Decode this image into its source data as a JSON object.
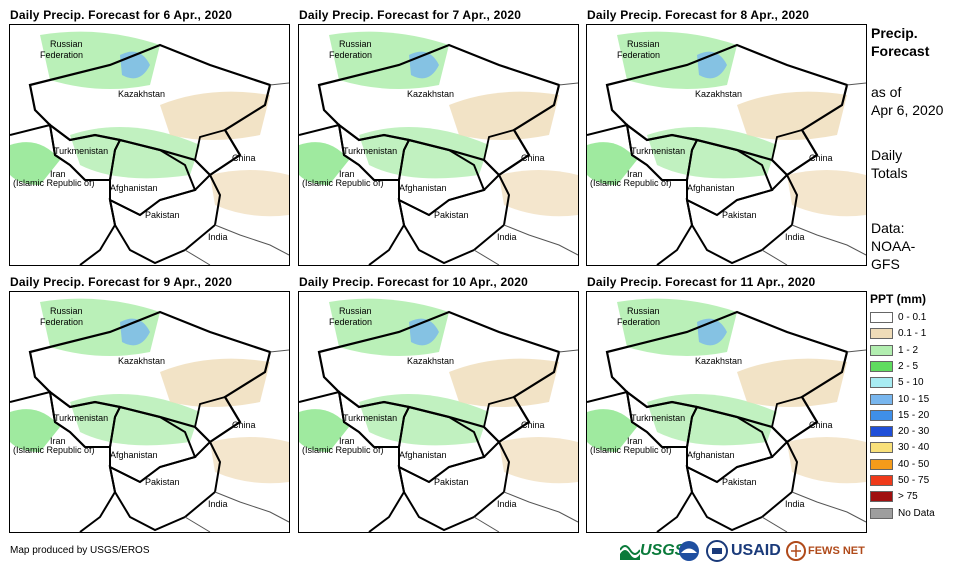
{
  "panels": [
    {
      "title": "Daily Precip. Forecast for 6 Apr., 2020"
    },
    {
      "title": "Daily Precip. Forecast for 7 Apr., 2020"
    },
    {
      "title": "Daily Precip. Forecast for 8 Apr., 2020"
    },
    {
      "title": "Daily Precip. Forecast for 9 Apr., 2020"
    },
    {
      "title": "Daily Precip. Forecast for 10 Apr., 2020"
    },
    {
      "title": "Daily Precip. Forecast for 11 Apr., 2020"
    }
  ],
  "map_labels": {
    "russia_1": "Russian",
    "russia_2": "Federation",
    "kazakhstan": "Kazakhstan",
    "turkmenistan": "Turkmenistan",
    "iran_1": "Iran",
    "iran_2": "(Islamic Republic of)",
    "afghanistan": "Afghanistan",
    "pakistan": "Pakistan",
    "china": "China",
    "india": "India"
  },
  "side": {
    "line1": "Precip.",
    "line2": "Forecast",
    "line3": "as of",
    "line4": "Apr 6, 2020",
    "line5": "Daily",
    "line6": "Totals",
    "line7": "Data:",
    "line8": "NOAA-",
    "line9": "GFS"
  },
  "legend": {
    "title": "PPT (mm)",
    "items": [
      {
        "label": "0 - 0.1",
        "color": "#ffffff"
      },
      {
        "label": "0.1 - 1",
        "color": "#efdcb8"
      },
      {
        "label": "1 - 2",
        "color": "#b2eeb0"
      },
      {
        "label": "2 - 5",
        "color": "#5fdc5f"
      },
      {
        "label": "5 - 10",
        "color": "#a8ecf2"
      },
      {
        "label": "10 - 15",
        "color": "#78b6ee"
      },
      {
        "label": "15 - 20",
        "color": "#3f8fe8"
      },
      {
        "label": "20 - 30",
        "color": "#1f4fd8"
      },
      {
        "label": "30 - 40",
        "color": "#f8e07a"
      },
      {
        "label": "40 - 50",
        "color": "#f59b1a"
      },
      {
        "label": "50 - 75",
        "color": "#ef3a1a"
      },
      {
        "label": "> 75",
        "color": "#a01010"
      },
      {
        "label": "No Data",
        "color": "#9e9e9e"
      }
    ]
  },
  "credit": "Map produced by USGS/EROS",
  "logos": {
    "usgs": "USGS",
    "usaid": "USAID",
    "fews": "FEWS NET"
  }
}
